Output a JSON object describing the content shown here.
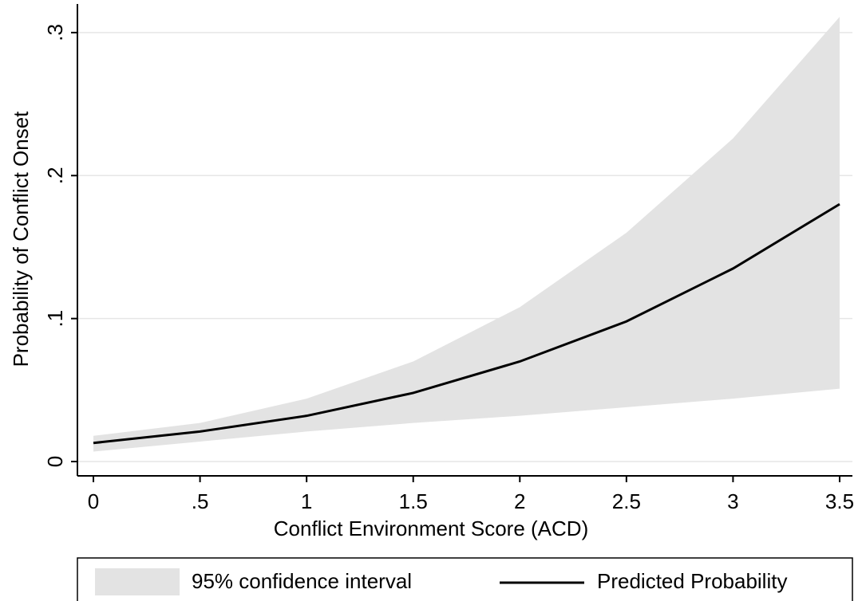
{
  "chart_data": {
    "type": "line",
    "xlabel": "Conflict Environment Score (ACD)",
    "ylabel": "Probability of Conflict Onset",
    "x": [
      0,
      0.5,
      1,
      1.5,
      2,
      2.5,
      3,
      3.5
    ],
    "series": [
      {
        "name": "Predicted Probability",
        "color": "#000000",
        "values": [
          0.013,
          0.021,
          0.032,
          0.048,
          0.07,
          0.098,
          0.135,
          0.18
        ]
      }
    ],
    "band": {
      "name": "95% confidence interval",
      "color": "#e3e3e3",
      "lower": [
        0.007,
        0.014,
        0.021,
        0.027,
        0.032,
        0.038,
        0.044,
        0.051
      ],
      "upper": [
        0.018,
        0.027,
        0.044,
        0.07,
        0.108,
        0.16,
        0.226,
        0.311
      ]
    },
    "xlim": [
      -0.075,
      3.56
    ],
    "ylim": [
      -0.01,
      0.32
    ],
    "xticks": [
      0,
      {
        "value": 0.5,
        "label": ".5"
      },
      1,
      1.5,
      2,
      2.5,
      3,
      3.5
    ],
    "yticks": [
      0,
      {
        "value": 0.1,
        "label": ".1"
      },
      {
        "value": 0.2,
        "label": ".2"
      },
      {
        "value": 0.3,
        "label": ".3"
      }
    ],
    "grid": true
  }
}
